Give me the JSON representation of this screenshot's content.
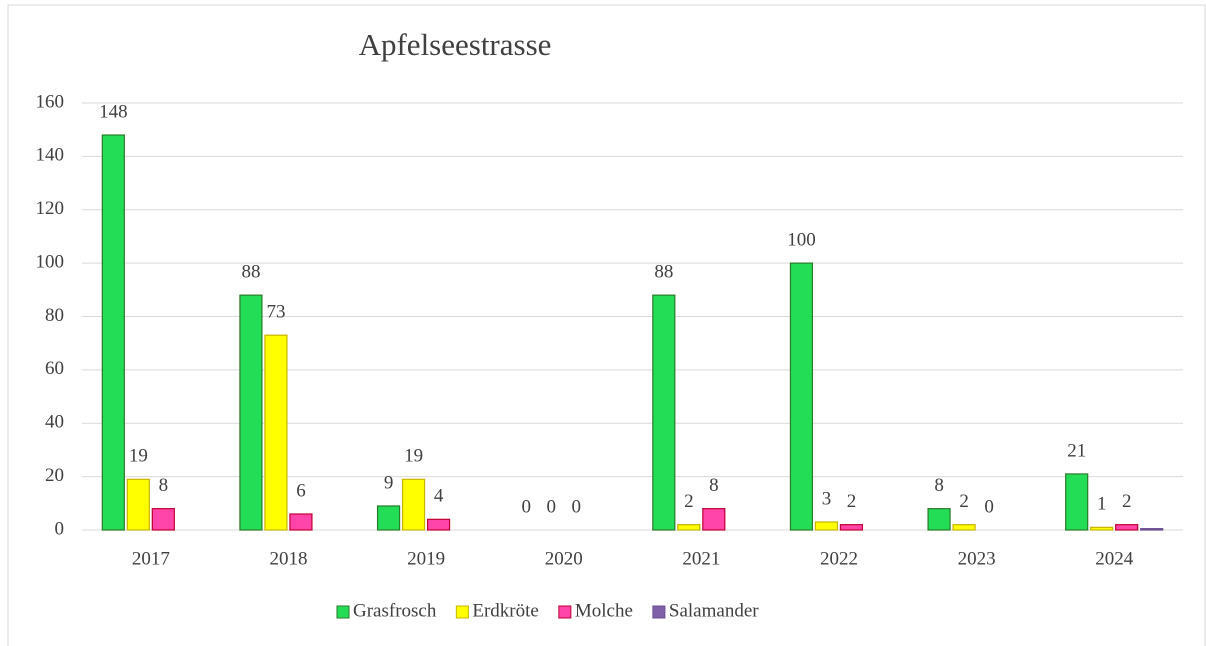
{
  "chart_data": {
    "type": "bar",
    "title": "Apfelseestrasse",
    "categories": [
      "2017",
      "2018",
      "2019",
      "2020",
      "2021",
      "2022",
      "2023",
      "2024"
    ],
    "series": [
      {
        "name": "Grasfrosch",
        "color": "#22dd55",
        "stroke": "#2a7a2a",
        "data_labels": true,
        "values": [
          148,
          88,
          9,
          0,
          88,
          100,
          8,
          21
        ]
      },
      {
        "name": "Erdkröte",
        "color": "#ffff00",
        "stroke": "#c8b400",
        "data_labels": true,
        "values": [
          19,
          73,
          19,
          0,
          2,
          3,
          2,
          1
        ]
      },
      {
        "name": "Molche",
        "color": "#ff44aa",
        "stroke": "#c00030",
        "data_labels": true,
        "values": [
          8,
          6,
          4,
          0,
          8,
          2,
          0,
          2
        ]
      },
      {
        "name": "Salamander",
        "color": "#8060a8",
        "stroke": "#6a4c90",
        "data_labels": false,
        "values": [
          null,
          null,
          null,
          null,
          null,
          null,
          null,
          0.5
        ]
      }
    ],
    "ylim": [
      0,
      160
    ],
    "yticks": [
      0,
      20,
      40,
      60,
      80,
      100,
      120,
      140,
      160
    ],
    "grid": true,
    "legend": "bottom"
  }
}
